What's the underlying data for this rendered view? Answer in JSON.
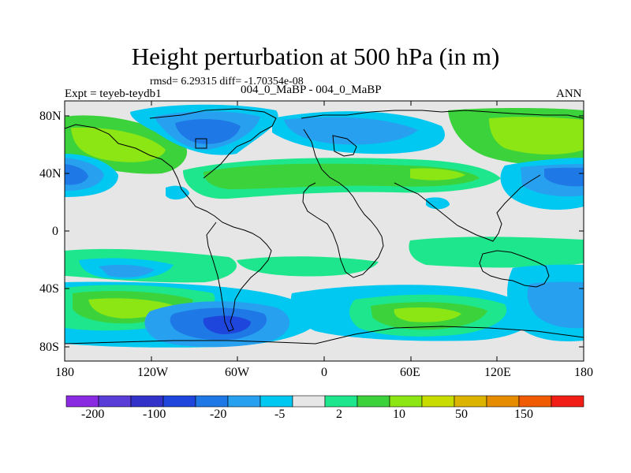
{
  "title": "Height perturbation at 500 hPa (in m)",
  "stats": "rmsd= 6.29315 diff= -1.70354e-08",
  "left_label": "Expt = teyeb-teydb1",
  "center_label": "004_0_MaBP - 004_0_MaBP",
  "right_label": "ANN",
  "map": {
    "lat_ticks": [
      "80N",
      "40N",
      "0",
      "40S",
      "80S"
    ],
    "lon_ticks": [
      "180",
      "120W",
      "60W",
      "0",
      "60E",
      "120E",
      "180"
    ],
    "lat_range": [
      -90,
      90
    ],
    "lon_range": [
      -180,
      180
    ]
  },
  "colorbar": {
    "colors": [
      "#8a2be2",
      "#5a3cd6",
      "#3232c8",
      "#1e46dc",
      "#1e78e6",
      "#28a0f0",
      "#00c8f0",
      "#e6e6e6",
      "#1ee68c",
      "#3cd23c",
      "#8ce614",
      "#c8dc00",
      "#dcb400",
      "#e68c00",
      "#f05a00",
      "#f01e14"
    ],
    "labels": [
      "-200",
      "-100",
      "-20",
      "-5",
      "2",
      "10",
      "50",
      "150"
    ]
  },
  "palette": {
    "background": "#e6e6e6",
    "light_green": "#8ce614",
    "green": "#3cd23c",
    "sea_green": "#1ee68c",
    "cyan": "#00c8f0",
    "sky": "#28a0f0",
    "blue": "#1e78e6",
    "dark_blue": "#1e46dc",
    "coast": "#000000"
  }
}
